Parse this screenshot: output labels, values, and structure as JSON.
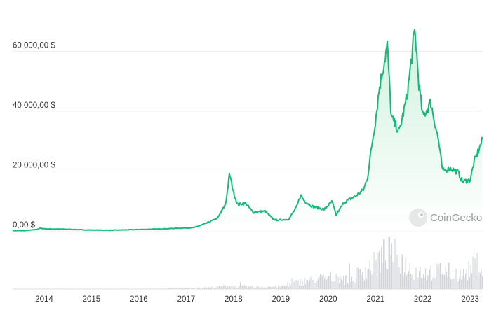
{
  "chart_data": {
    "type": "area",
    "watermark": "CoinGecko",
    "y_ticks": [
      {
        "value": 0,
        "label": "0,00 $"
      },
      {
        "value": 20000,
        "label": "20 000,00 $"
      },
      {
        "value": 40000,
        "label": "40 000,00 $"
      },
      {
        "value": 60000,
        "label": "60 000,00 $"
      }
    ],
    "x_ticks": [
      "2014",
      "2015",
      "2016",
      "2017",
      "2018",
      "2019",
      "2020",
      "2021",
      "2022",
      "2023"
    ],
    "xlim": [
      "2013-05",
      "2023-04"
    ],
    "ylim": [
      0,
      72000
    ],
    "grid": true,
    "colors": {
      "line": "#16b979",
      "fill_top": "#c9efd9",
      "fill_bottom": "#ffffff",
      "volume": "#d3d4d9",
      "grid": "#ececec"
    },
    "price": {
      "x": [
        "2013-05",
        "2013-08",
        "2013-11",
        "2013-12",
        "2014-02",
        "2014-06",
        "2014-12",
        "2015-06",
        "2015-12",
        "2016-06",
        "2016-12",
        "2017-03",
        "2017-06",
        "2017-09",
        "2017-11",
        "2017-12",
        "2018-01",
        "2018-02",
        "2018-04",
        "2018-06",
        "2018-09",
        "2018-11",
        "2018-12",
        "2019-03",
        "2019-05",
        "2019-06",
        "2019-07",
        "2019-09",
        "2019-12",
        "2020-02",
        "2020-03",
        "2020-05",
        "2020-08",
        "2020-10",
        "2020-11",
        "2020-12",
        "2021-01",
        "2021-02",
        "2021-04",
        "2021-05",
        "2021-07",
        "2021-09",
        "2021-11",
        "2021-12",
        "2022-01",
        "2022-03",
        "2022-05",
        "2022-06",
        "2022-08",
        "2022-10",
        "2022-11",
        "2023-01",
        "2023-02",
        "2023-04"
      ],
      "y": [
        120,
        100,
        450,
        900,
        650,
        600,
        320,
        240,
        430,
        650,
        960,
        1100,
        2500,
        4300,
        9000,
        19000,
        13000,
        8800,
        9300,
        6200,
        6600,
        4000,
        3600,
        3900,
        8000,
        12000,
        10000,
        8200,
        7200,
        9800,
        5300,
        9500,
        11700,
        13800,
        18000,
        28000,
        37000,
        48000,
        62000,
        38000,
        33000,
        45000,
        67000,
        49000,
        38000,
        43000,
        30000,
        20000,
        21000,
        19500,
        16500,
        17000,
        23000,
        30000
      ]
    },
    "volume": {
      "x": [
        "2013-05",
        "2014-06",
        "2015-06",
        "2016-06",
        "2017-06",
        "2017-12",
        "2018-06",
        "2019-01",
        "2019-06",
        "2020-03",
        "2020-06",
        "2021-01",
        "2021-05",
        "2021-09",
        "2022-01",
        "2022-06",
        "2022-11",
        "2023-03",
        "2023-04"
      ],
      "y": [
        0.5,
        0.8,
        0.6,
        0.8,
        3,
        8,
        5,
        6,
        18,
        30,
        22,
        60,
        100,
        50,
        40,
        45,
        32,
        60,
        40
      ]
    }
  }
}
